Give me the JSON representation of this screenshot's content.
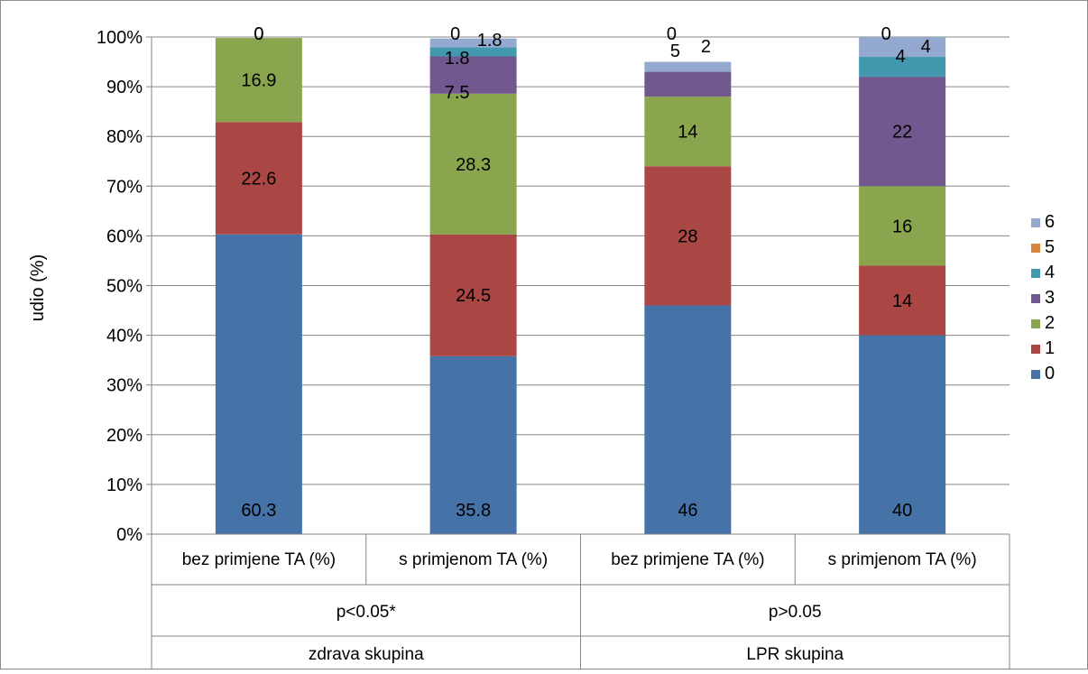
{
  "chart_data": {
    "type": "bar",
    "stacking": "percent",
    "ylabel": "udio (%)",
    "ylim": [
      0,
      100
    ],
    "yticks": [
      "0%",
      "10%",
      "20%",
      "30%",
      "40%",
      "50%",
      "60%",
      "70%",
      "80%",
      "90%",
      "100%"
    ],
    "grid": true,
    "legend_placement": "right",
    "categories": [
      "bez primjene TA (%)",
      "s primjenom TA (%)",
      "bez primjene TA (%)",
      "s primjenom TA (%)"
    ],
    "group_labels": [
      {
        "significance": "p<0.05*",
        "group": "zdrava skupina"
      },
      {
        "significance": "p>0.05",
        "group": "LPR skupina"
      }
    ],
    "series": [
      {
        "name": "0",
        "color": "#4572A7",
        "values": [
          60.3,
          35.8,
          46,
          40
        ]
      },
      {
        "name": "1",
        "color": "#AA4643",
        "values": [
          22.6,
          24.5,
          28,
          14
        ]
      },
      {
        "name": "2",
        "color": "#89A54E",
        "values": [
          16.9,
          28.3,
          14,
          16
        ]
      },
      {
        "name": "3",
        "color": "#71588F",
        "values": [
          0,
          7.5,
          5,
          22
        ]
      },
      {
        "name": "4",
        "color": "#4198AF",
        "values": [
          0,
          1.8,
          0,
          4
        ]
      },
      {
        "name": "5",
        "color": "#DB843D",
        "values": [
          0,
          0,
          0,
          0
        ]
      },
      {
        "name": "6",
        "color": "#93A9CF",
        "values": [
          0,
          1.8,
          2,
          4
        ]
      }
    ],
    "data_labels": [
      [
        {
          "series": 0,
          "text": "60.3"
        },
        {
          "series": 1,
          "text": "22.6"
        },
        {
          "series": 2,
          "text": "16.9"
        },
        {
          "series": 3,
          "text": "0"
        },
        {
          "series": 6,
          "text": "0"
        }
      ],
      [
        {
          "series": 0,
          "text": "35.8"
        },
        {
          "series": 1,
          "text": "24.5"
        },
        {
          "series": 2,
          "text": "28.3"
        },
        {
          "series": 3,
          "text": "7.5"
        },
        {
          "series": 4,
          "text": "1.8"
        },
        {
          "series": 5,
          "text": "0"
        },
        {
          "series": 6,
          "text": "1.8"
        }
      ],
      [
        {
          "series": 0,
          "text": "46"
        },
        {
          "series": 1,
          "text": "28"
        },
        {
          "series": 2,
          "text": "14"
        },
        {
          "series": 3,
          "text": "5"
        },
        {
          "series": 5,
          "text": "0"
        },
        {
          "series": 6,
          "text": "2"
        }
      ],
      [
        {
          "series": 0,
          "text": "40"
        },
        {
          "series": 1,
          "text": "14"
        },
        {
          "series": 2,
          "text": "16"
        },
        {
          "series": 3,
          "text": "22"
        },
        {
          "series": 4,
          "text": "4"
        },
        {
          "series": 5,
          "text": "0"
        },
        {
          "series": 6,
          "text": "4"
        }
      ]
    ]
  }
}
